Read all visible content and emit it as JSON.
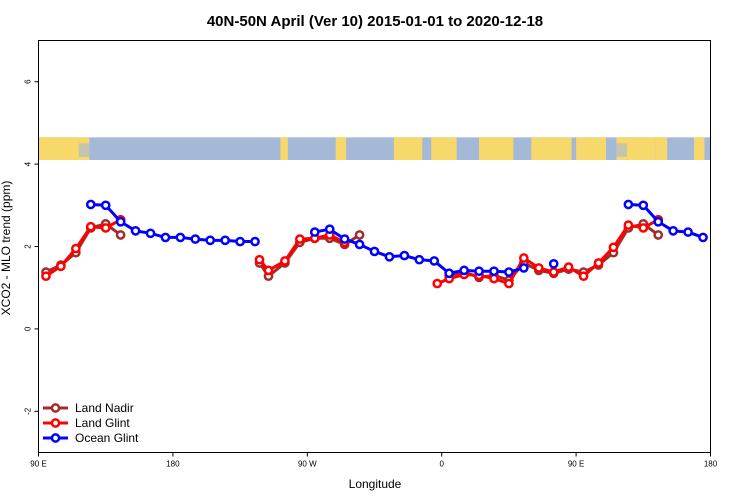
{
  "chart_data": {
    "type": "line",
    "title": "40N-50N April (Ver 10)   2015-01-01 to 2020-12-18",
    "xlabel": "Longitude",
    "ylabel": "XCO2 - MLO trend (ppm)",
    "xlim": [
      90,
      540
    ],
    "ylim": [
      -3,
      7
    ],
    "x_ticks": [
      {
        "value": 90,
        "label": "90 E"
      },
      {
        "value": 180,
        "label": "180"
      },
      {
        "value": 270,
        "label": "90 W"
      },
      {
        "value": 360,
        "label": "0"
      },
      {
        "value": 450,
        "label": "90 E"
      },
      {
        "value": 540,
        "label": "180"
      }
    ],
    "y_ticks": [
      {
        "value": -2,
        "label": "-2"
      },
      {
        "value": 0,
        "label": "0"
      },
      {
        "value": 2,
        "label": "2"
      },
      {
        "value": 4,
        "label": "4"
      },
      {
        "value": 6,
        "label": "6"
      }
    ],
    "grid": false,
    "legend_position": "bottom-left",
    "map_strip_range": [
      4.1,
      4.65
    ],
    "colors": {
      "ocean": "#a4b8d8",
      "land": "#f7d86a"
    },
    "series": [
      {
        "name": "Land Nadir",
        "color": "#a52a2a",
        "segments": [
          [
            [
              95,
              1.38
            ],
            [
              105,
              1.55
            ],
            [
              115,
              1.85
            ],
            [
              125,
              2.45
            ],
            [
              135,
              2.55
            ],
            [
              145,
              2.28
            ]
          ],
          [
            [
              238,
              1.6
            ],
            [
              244,
              1.28
            ],
            [
              255,
              1.6
            ],
            [
              265,
              2.1
            ],
            [
              275,
              2.2
            ],
            [
              285,
              2.2
            ],
            [
              295,
              2.05
            ],
            [
              305,
              2.28
            ]
          ],
          [
            [
              365,
              1.3
            ],
            [
              375,
              1.38
            ],
            [
              385,
              1.25
            ],
            [
              395,
              1.3
            ],
            [
              405,
              1.18
            ],
            [
              415,
              1.6
            ],
            [
              425,
              1.42
            ],
            [
              435,
              1.35
            ],
            [
              445,
              1.45
            ],
            [
              455,
              1.38
            ],
            [
              465,
              1.55
            ],
            [
              475,
              1.85
            ],
            [
              485,
              2.45
            ],
            [
              495,
              2.55
            ],
            [
              505,
              2.28
            ]
          ]
        ]
      },
      {
        "name": "Land Glint",
        "color": "#ff0000",
        "segments": [
          [
            [
              95,
              1.28
            ],
            [
              105,
              1.52
            ],
            [
              115,
              1.95
            ],
            [
              125,
              2.48
            ],
            [
              135,
              2.45
            ],
            [
              145,
              2.65
            ]
          ],
          [
            [
              238,
              1.68
            ],
            [
              244,
              1.42
            ],
            [
              255,
              1.65
            ],
            [
              265,
              2.18
            ],
            [
              275,
              2.2
            ],
            [
              285,
              2.28
            ],
            [
              295,
              2.1
            ]
          ],
          [
            [
              357,
              1.1
            ],
            [
              365,
              1.22
            ],
            [
              375,
              1.32
            ],
            [
              385,
              1.3
            ],
            [
              395,
              1.22
            ],
            [
              405,
              1.1
            ],
            [
              415,
              1.72
            ],
            [
              425,
              1.48
            ],
            [
              435,
              1.38
            ],
            [
              445,
              1.5
            ],
            [
              455,
              1.28
            ],
            [
              465,
              1.6
            ],
            [
              475,
              1.98
            ],
            [
              485,
              2.52
            ],
            [
              495,
              2.45
            ],
            [
              505,
              2.65
            ]
          ]
        ]
      },
      {
        "name": "Ocean Glint",
        "color": "#0000ff",
        "segments": [
          [
            [
              125,
              3.02
            ],
            [
              135,
              3.0
            ],
            [
              145,
              2.6
            ],
            [
              155,
              2.38
            ],
            [
              165,
              2.32
            ],
            [
              175,
              2.22
            ],
            [
              185,
              2.22
            ],
            [
              195,
              2.18
            ],
            [
              205,
              2.15
            ],
            [
              215,
              2.15
            ],
            [
              225,
              2.12
            ],
            [
              235,
              2.12
            ]
          ],
          [
            [
              275,
              2.35
            ],
            [
              285,
              2.42
            ],
            [
              295,
              2.18
            ],
            [
              305,
              2.05
            ],
            [
              315,
              1.88
            ],
            [
              325,
              1.75
            ],
            [
              335,
              1.78
            ],
            [
              345,
              1.68
            ],
            [
              355,
              1.65
            ],
            [
              365,
              1.35
            ],
            [
              375,
              1.42
            ],
            [
              385,
              1.4
            ],
            [
              395,
              1.4
            ],
            [
              405,
              1.38
            ],
            [
              415,
              1.48
            ]
          ],
          [
            [
              435,
              1.58
            ]
          ],
          [
            [
              485,
              3.02
            ],
            [
              495,
              3.0
            ],
            [
              505,
              2.6
            ],
            [
              515,
              2.38
            ],
            [
              525,
              2.35
            ],
            [
              535,
              2.22
            ]
          ]
        ]
      }
    ]
  }
}
